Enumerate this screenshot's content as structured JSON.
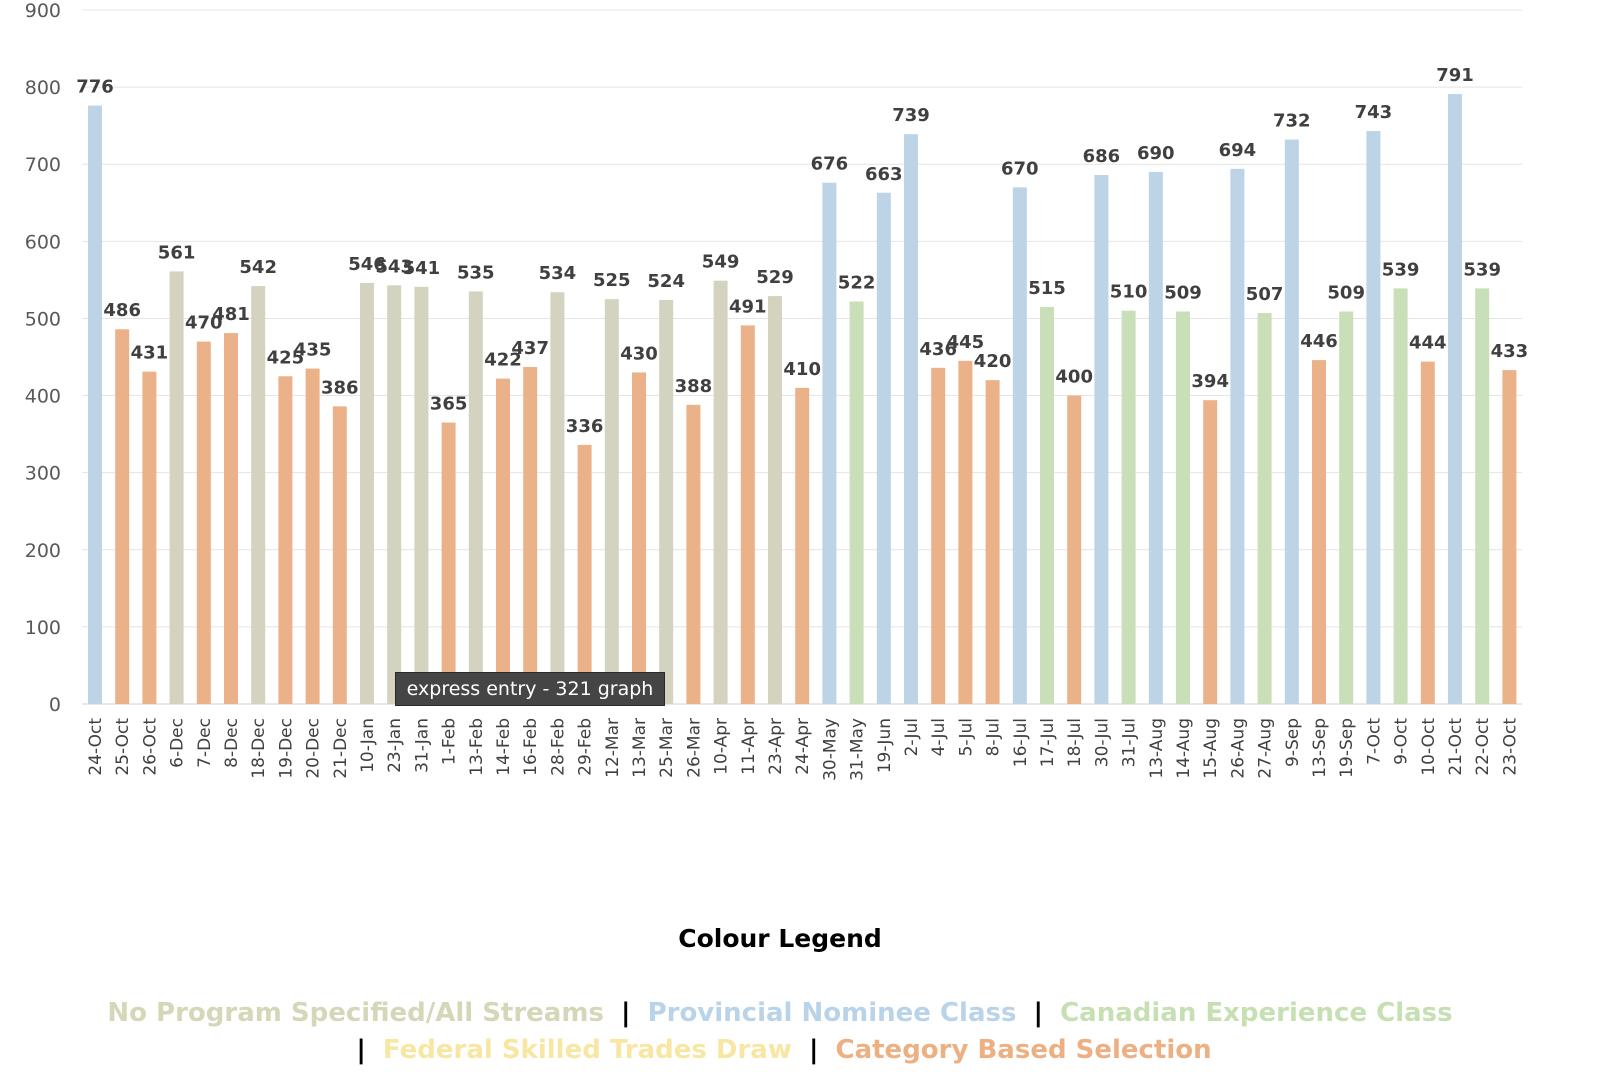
{
  "chart_data": {
    "type": "bar",
    "title": "",
    "xlabel": "",
    "ylabel": "",
    "ylim": [
      0,
      900
    ],
    "yticks": [
      0,
      100,
      200,
      300,
      400,
      500,
      600,
      700,
      800,
      900
    ],
    "grid": true,
    "categories": [
      "24-Oct",
      "25-Oct",
      "26-Oct",
      "6-Dec",
      "7-Dec",
      "8-Dec",
      "18-Dec",
      "19-Dec",
      "20-Dec",
      "21-Dec",
      "10-Jan",
      "23-Jan",
      "31-Jan",
      "1-Feb",
      "13-Feb",
      "14-Feb",
      "16-Feb",
      "28-Feb",
      "29-Feb",
      "12-Mar",
      "13-Mar",
      "25-Mar",
      "26-Mar",
      "10-Apr",
      "11-Apr",
      "23-Apr",
      "24-Apr",
      "30-May",
      "31-May",
      "19-Jun",
      "2-Jul",
      "4-Jul",
      "5-Jul",
      "8-Jul",
      "16-Jul",
      "17-Jul",
      "18-Jul",
      "30-Jul",
      "31-Jul",
      "13-Aug",
      "14-Aug",
      "15-Aug",
      "26-Aug",
      "27-Aug",
      "9-Sep",
      "13-Sep",
      "19-Sep",
      "7-Oct",
      "9-Oct",
      "10-Oct",
      "21-Oct",
      "22-Oct",
      "23-Oct"
    ],
    "values": [
      776,
      486,
      431,
      561,
      470,
      481,
      542,
      425,
      435,
      386,
      546,
      543,
      541,
      365,
      535,
      422,
      437,
      534,
      336,
      525,
      430,
      524,
      388,
      549,
      491,
      529,
      410,
      676,
      522,
      663,
      739,
      436,
      445,
      420,
      670,
      515,
      400,
      686,
      510,
      690,
      509,
      394,
      694,
      507,
      732,
      446,
      509,
      743,
      539,
      444,
      791,
      539,
      433
    ],
    "bar_classes": [
      "pnp",
      "cat",
      "cat",
      "all",
      "cat",
      "cat",
      "all",
      "cat",
      "cat",
      "cat",
      "all",
      "all",
      "all",
      "cat",
      "all",
      "cat",
      "cat",
      "all",
      "cat",
      "all",
      "cat",
      "all",
      "cat",
      "all",
      "cat",
      "all",
      "cat",
      "pnp",
      "cec",
      "pnp",
      "pnp",
      "cat",
      "cat",
      "cat",
      "pnp",
      "cec",
      "cat",
      "pnp",
      "cec",
      "pnp",
      "cec",
      "cat",
      "pnp",
      "cec",
      "pnp",
      "cat",
      "cec",
      "pnp",
      "cec",
      "cat",
      "pnp",
      "cec",
      "cat"
    ],
    "colors": {
      "all": "#d3d3bf",
      "pnp": "#bdd3e6",
      "cec": "#c9dfb8",
      "fst": "#f7e7a1",
      "cat": "#ebb28a"
    }
  },
  "tooltip": "express entry - 321 graph",
  "legend": {
    "title": "Colour Legend",
    "separator": "|",
    "items": [
      {
        "label": "No Program Specified/All Streams",
        "color": "#d6d6b8"
      },
      {
        "label": "Provincial Nominee Class",
        "color": "#b9d3e8"
      },
      {
        "label": "Canadian Experience Class",
        "color": "#c6e0b3"
      },
      {
        "label": "Federal Skilled Trades Draw",
        "color": "#f8e6a3"
      },
      {
        "label": "Category Based Selection",
        "color": "#ecb083"
      }
    ]
  }
}
